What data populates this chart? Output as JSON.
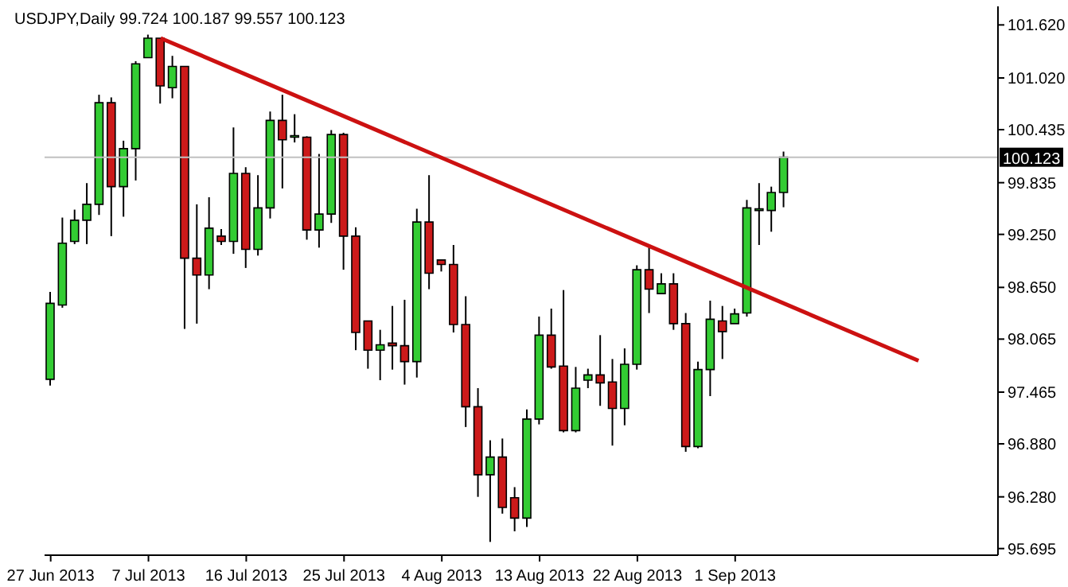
{
  "chart_data": {
    "type": "candlestick",
    "title": "USDJPY,Daily  99.724 100.187 99.557 100.123",
    "categories": [
      "27 Jun 2013",
      null,
      null,
      null,
      null,
      null,
      null,
      null,
      "7 Jul 2013",
      null,
      null,
      null,
      null,
      null,
      null,
      null,
      "16 Jul 2013",
      null,
      null,
      null,
      null,
      null,
      null,
      null,
      "25 Jul 2013",
      null,
      null,
      null,
      null,
      null,
      null,
      null,
      "4 Aug 2013",
      null,
      null,
      null,
      null,
      null,
      null,
      null,
      "13 Aug 2013",
      null,
      null,
      null,
      null,
      null,
      null,
      null,
      "22 Aug 2013",
      null,
      null,
      null,
      null,
      null,
      null,
      null,
      "1 Sep 2013",
      null,
      null,
      null,
      null,
      null,
      null,
      null,
      null,
      null,
      null,
      null,
      null,
      null,
      null,
      null,
      null,
      null,
      null,
      null,
      null,
      null
    ],
    "ohlc": [
      [
        97.61,
        98.6,
        97.54,
        98.47
      ],
      [
        98.45,
        99.44,
        98.42,
        99.15
      ],
      [
        99.17,
        99.53,
        99.14,
        99.41
      ],
      [
        99.41,
        99.83,
        99.14,
        99.59
      ],
      [
        99.59,
        100.83,
        99.47,
        100.74
      ],
      [
        100.74,
        100.8,
        99.23,
        99.79
      ],
      [
        99.79,
        100.31,
        99.45,
        100.22
      ],
      [
        100.22,
        101.21,
        99.86,
        101.18
      ],
      [
        101.25,
        101.51,
        101.25,
        101.47
      ],
      [
        101.47,
        101.47,
        100.73,
        100.93
      ],
      [
        100.91,
        101.27,
        100.79,
        101.15
      ],
      [
        101.15,
        101.15,
        98.18,
        98.98
      ],
      [
        98.98,
        99.59,
        98.24,
        98.79
      ],
      [
        98.79,
        99.67,
        98.63,
        99.32
      ],
      [
        99.23,
        99.31,
        99.13,
        99.17
      ],
      [
        99.17,
        100.46,
        99.03,
        99.94
      ],
      [
        99.94,
        100.01,
        98.87,
        99.08
      ],
      [
        99.08,
        99.92,
        99.01,
        99.55
      ],
      [
        99.55,
        100.64,
        99.43,
        100.54
      ],
      [
        100.54,
        100.83,
        99.77,
        100.32
      ],
      [
        100.35,
        100.61,
        100.29,
        100.36
      ],
      [
        100.35,
        100.36,
        99.19,
        99.3
      ],
      [
        99.3,
        100.16,
        99.1,
        99.48
      ],
      [
        99.48,
        100.43,
        99.38,
        100.38
      ],
      [
        100.38,
        100.4,
        98.85,
        99.23
      ],
      [
        99.23,
        99.33,
        97.94,
        98.14
      ],
      [
        98.27,
        98.27,
        97.73,
        97.94
      ],
      [
        97.94,
        98.17,
        97.6,
        98.0
      ],
      [
        98.02,
        98.44,
        97.72,
        97.99
      ],
      [
        97.99,
        98.51,
        97.55,
        97.81
      ],
      [
        97.81,
        99.54,
        97.63,
        99.39
      ],
      [
        99.39,
        99.92,
        98.63,
        98.81
      ],
      [
        98.96,
        98.96,
        98.83,
        98.91
      ],
      [
        98.91,
        99.13,
        98.14,
        98.23
      ],
      [
        98.23,
        98.55,
        97.07,
        97.3
      ],
      [
        97.3,
        97.51,
        96.28,
        96.53
      ],
      [
        96.53,
        96.92,
        95.77,
        96.73
      ],
      [
        96.73,
        96.94,
        96.09,
        96.16
      ],
      [
        96.27,
        96.39,
        95.89,
        96.04
      ],
      [
        96.04,
        97.27,
        95.94,
        97.16
      ],
      [
        97.16,
        98.32,
        97.1,
        98.11
      ],
      [
        98.11,
        98.41,
        97.73,
        97.75
      ],
      [
        97.76,
        98.62,
        97.01,
        97.03
      ],
      [
        97.03,
        97.75,
        97.01,
        97.51
      ],
      [
        97.6,
        97.73,
        97.51,
        97.66
      ],
      [
        97.66,
        98.11,
        97.31,
        97.57
      ],
      [
        97.58,
        97.84,
        96.86,
        97.28
      ],
      [
        97.28,
        97.96,
        97.09,
        97.78
      ],
      [
        97.78,
        98.9,
        97.72,
        98.85
      ],
      [
        98.85,
        99.13,
        98.36,
        98.63
      ],
      [
        98.58,
        98.81,
        98.58,
        98.69
      ],
      [
        98.69,
        98.81,
        98.17,
        98.24
      ],
      [
        98.24,
        98.36,
        96.79,
        96.85
      ],
      [
        96.85,
        97.81,
        96.83,
        97.72
      ],
      [
        97.72,
        98.5,
        97.42,
        98.29
      ],
      [
        98.27,
        98.44,
        97.84,
        98.15
      ],
      [
        98.24,
        98.41,
        98.24,
        98.35
      ],
      [
        98.36,
        99.64,
        98.32,
        99.55
      ],
      [
        99.52,
        99.83,
        99.13,
        99.54
      ],
      [
        99.52,
        99.79,
        99.28,
        99.724
      ],
      [
        99.724,
        100.187,
        99.557,
        100.123
      ],
      null,
      null,
      null,
      null,
      null,
      null,
      null,
      null,
      null,
      null,
      null,
      null,
      null,
      null,
      null,
      null,
      null
    ],
    "colors": [
      "#33cc33",
      "#33cc33",
      "#33cc33",
      "#33cc33",
      "#33cc33",
      "#cc1a1a",
      "#33cc33",
      "#33cc33",
      "#33cc33",
      "#cc1a1a",
      "#33cc33",
      "#cc1a1a",
      "#cc1a1a",
      "#33cc33",
      "#cc1a1a",
      "#33cc33",
      "#cc1a1a",
      "#33cc33",
      "#33cc33",
      "#cc1a1a",
      "#33cc33",
      "#cc1a1a",
      "#33cc33",
      "#33cc33",
      "#cc1a1a",
      "#cc1a1a",
      "#cc1a1a",
      "#33cc33",
      "#cc1a1a",
      "#cc1a1a",
      "#33cc33",
      "#cc1a1a",
      "#cc1a1a",
      "#cc1a1a",
      "#cc1a1a",
      "#cc1a1a",
      "#33cc33",
      "#cc1a1a",
      "#cc1a1a",
      "#33cc33",
      "#33cc33",
      "#cc1a1a",
      "#cc1a1a",
      "#33cc33",
      "#33cc33",
      "#cc1a1a",
      "#cc1a1a",
      "#33cc33",
      "#33cc33",
      "#cc1a1a",
      "#33cc33",
      "#cc1a1a",
      "#cc1a1a",
      "#33cc33",
      "#33cc33",
      "#cc1a1a",
      "#33cc33",
      "#33cc33",
      "#33cc33",
      "#33cc33",
      "#33cc33",
      null,
      null,
      null,
      null,
      null,
      null,
      null,
      null,
      null,
      null,
      null,
      null,
      null,
      null,
      null,
      null,
      null
    ],
    "series": [
      {
        "type": "line",
        "color": "#cc1111",
        "values": [
          null,
          null,
          null,
          null,
          null,
          null,
          null,
          null,
          null,
          101.47,
          null,
          null,
          null,
          null,
          null,
          null,
          null,
          null,
          null,
          null,
          null,
          null,
          null,
          null,
          null,
          null,
          null,
          null,
          null,
          null,
          null,
          null,
          null,
          null,
          null,
          null,
          null,
          null,
          null,
          null,
          null,
          null,
          null,
          null,
          null,
          null,
          null,
          null,
          null,
          null,
          null,
          null,
          null,
          null,
          null,
          null,
          null,
          null,
          null,
          null,
          null,
          null,
          null,
          null,
          null,
          null,
          null,
          null,
          null,
          null,
          null,
          97.82,
          null,
          null,
          null,
          null,
          null,
          null
        ]
      }
    ],
    "ylim": [
      95.62,
      101.83
    ],
    "yticks": [
      {
        "value": 95.695,
        "label": "95.695"
      },
      {
        "value": 96.28,
        "label": "96.280"
      },
      {
        "value": 96.88,
        "label": "96.880"
      },
      {
        "value": 97.465,
        "label": "97.465"
      },
      {
        "value": 98.065,
        "label": "98.065"
      },
      {
        "value": 98.65,
        "label": "98.650"
      },
      {
        "value": 99.25,
        "label": "99.250"
      },
      {
        "value": 99.835,
        "label": "99.835"
      },
      {
        "value": 100.435,
        "label": "100.435"
      },
      {
        "value": 101.02,
        "label": "101.020"
      },
      {
        "value": 101.62,
        "label": "101.620"
      }
    ],
    "ref_lines": [
      {
        "axis": "y",
        "value": 100.123,
        "label": "100.123",
        "color": "#c0c0c0"
      }
    ],
    "grid": false
  }
}
